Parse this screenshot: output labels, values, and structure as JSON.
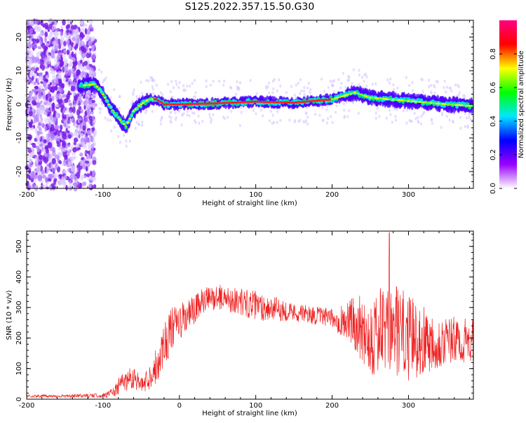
{
  "title": "S125.2022.357.15.50.G30",
  "chart_data": [
    {
      "type": "heatmap",
      "xlabel": "Height of straight line (km)",
      "ylabel": "Frequency (Hz)",
      "xlim": [
        -200,
        385
      ],
      "ylim": [
        -25,
        25
      ],
      "xticks": [
        -200,
        -100,
        0,
        100,
        200,
        300
      ],
      "xtick_labels": [
        "-200",
        "-100",
        "0",
        "100",
        "200",
        "300"
      ],
      "yticks": [
        -20,
        -10,
        0,
        10,
        20
      ],
      "ytick_labels": [
        "-20",
        "-10",
        "0",
        "10",
        "20"
      ],
      "ridge": {
        "x": [
          -130,
          -110,
          -100,
          -90,
          -80,
          -70,
          -60,
          -50,
          -40,
          -30,
          -20,
          0,
          50,
          100,
          150,
          200,
          230,
          250,
          300,
          350,
          385
        ],
        "frequency": [
          5.5,
          6,
          3,
          -1,
          -4,
          -6.5,
          -2,
          0,
          1.5,
          1.5,
          0,
          0,
          0.3,
          0.8,
          0.5,
          1.5,
          3.5,
          2,
          1,
          0,
          -0.5
        ]
      },
      "colorbar": {
        "label": "Normalized spectral amplitude",
        "range": [
          0,
          1
        ],
        "ticks": [
          0.0,
          0.2,
          0.4,
          0.6,
          0.8
        ],
        "tick_labels": [
          "0.0",
          "0.2",
          "0.4",
          "0.6",
          "0.8"
        ],
        "colormap": [
          "#ffffff",
          "#9a00ff",
          "#0000ff",
          "#00e6ff",
          "#00ff00",
          "#ffff00",
          "#ff0000",
          "#ff0080"
        ]
      },
      "grid": false,
      "legend": "none"
    },
    {
      "type": "line",
      "xlabel": "Height of straight line (km)",
      "ylabel": "SNR (10 * v/v)",
      "xlim": [
        -200,
        385
      ],
      "ylim": [
        0,
        550
      ],
      "xticks": [
        -200,
        -100,
        0,
        100,
        200,
        300
      ],
      "xtick_labels": [
        "-200",
        "-100",
        "0",
        "100",
        "200",
        "300"
      ],
      "yticks": [
        0,
        100,
        200,
        300,
        400,
        500
      ],
      "ytick_labels": [
        "0",
        "100",
        "200",
        "300",
        "400",
        "500"
      ],
      "envelope": {
        "x": [
          -200,
          -150,
          -100,
          -85,
          -75,
          -60,
          -50,
          -40,
          -30,
          -20,
          -10,
          0,
          10,
          20,
          30,
          50,
          80,
          100,
          150,
          200,
          230,
          250,
          280,
          300,
          340,
          385
        ],
        "mean": [
          10,
          10,
          12,
          25,
          55,
          75,
          45,
          70,
          110,
          180,
          230,
          250,
          270,
          290,
          320,
          335,
          320,
          305,
          285,
          265,
          250,
          210,
          230,
          200,
          190,
          190
        ],
        "spread": [
          5,
          5,
          7,
          20,
          35,
          40,
          25,
          40,
          60,
          80,
          70,
          60,
          60,
          50,
          45,
          40,
          45,
          50,
          30,
          30,
          90,
          140,
          160,
          140,
          90,
          70
        ]
      },
      "peak": {
        "x": 275,
        "y": 545
      },
      "color": "#ee2222",
      "grid": false,
      "legend": "none"
    }
  ]
}
